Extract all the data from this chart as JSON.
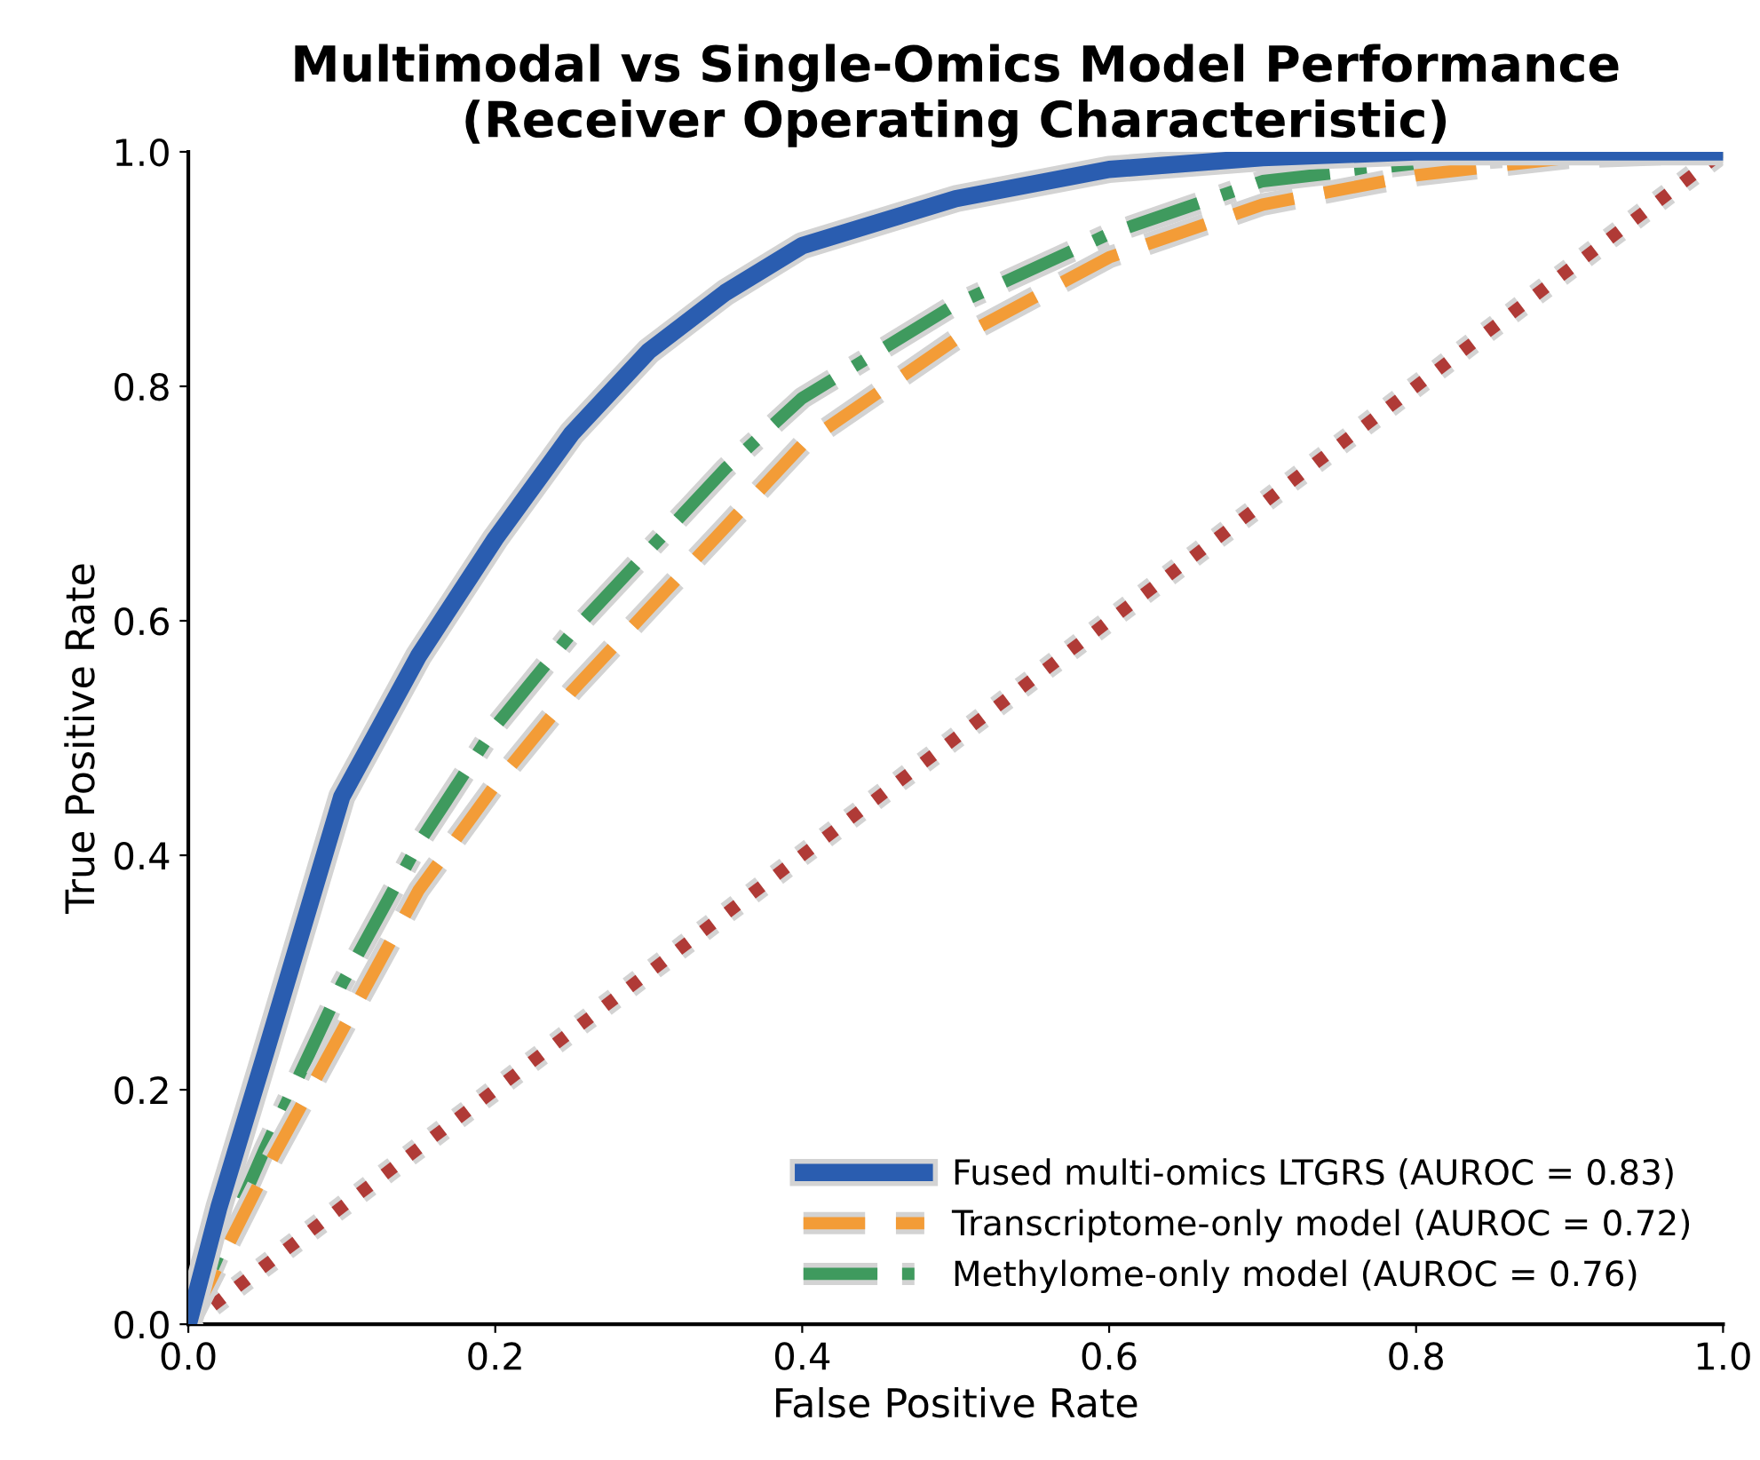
{
  "chart_data": {
    "type": "line",
    "title": "Multimodal vs Single-Omics Model Performance\n(Receiver Operating Characteristic)",
    "xlabel": "False Positive Rate",
    "ylabel": "True Positive Rate",
    "xlim": [
      0,
      1
    ],
    "ylim": [
      0,
      1
    ],
    "xticks": [
      {
        "value": 0,
        "label": "0.0"
      },
      0.2,
      0.4,
      0.6,
      0.8,
      {
        "value": 1,
        "label": "1.0"
      }
    ],
    "yticks": [
      {
        "value": 0,
        "label": "0.0"
      },
      0.2,
      0.4,
      0.6,
      0.8,
      {
        "value": 1,
        "label": "1.0"
      }
    ],
    "grid": false,
    "legend": "bottom right",
    "series": [
      {
        "name": "Fused multi-omics LTGRS (AUROC = 0.83)",
        "color": "#2a5db0",
        "line_style": "solid",
        "x": [
          0,
          0.02,
          0.05,
          0.1,
          0.15,
          0.2,
          0.25,
          0.3,
          0.35,
          0.4,
          0.5,
          0.6,
          0.7,
          0.8,
          0.9,
          1.0
        ],
        "values": [
          0,
          0.1,
          0.23,
          0.45,
          0.57,
          0.67,
          0.76,
          0.83,
          0.88,
          0.92,
          0.96,
          0.985,
          0.995,
          1.0,
          1.0,
          1.0
        ]
      },
      {
        "name": "Transcriptome-only model (AUROC = 0.72)",
        "color": "#f39c37",
        "line_style": "dashed",
        "x": [
          0,
          0.05,
          0.1,
          0.15,
          0.2,
          0.25,
          0.3,
          0.35,
          0.4,
          0.5,
          0.6,
          0.7,
          0.8,
          0.9,
          1.0
        ],
        "values": [
          0,
          0.13,
          0.25,
          0.37,
          0.46,
          0.54,
          0.61,
          0.68,
          0.75,
          0.84,
          0.91,
          0.955,
          0.98,
          0.995,
          1.0
        ]
      },
      {
        "name": "Methylome-only model (AUROC = 0.76)",
        "color": "#3f9a5e",
        "line_style": "dashdot",
        "x": [
          0,
          0.05,
          0.1,
          0.15,
          0.2,
          0.25,
          0.3,
          0.35,
          0.4,
          0.5,
          0.6,
          0.7,
          0.8,
          0.9,
          1.0
        ],
        "values": [
          0,
          0.15,
          0.29,
          0.41,
          0.51,
          0.59,
          0.66,
          0.73,
          0.79,
          0.87,
          0.93,
          0.975,
          0.99,
          1.0,
          1.0
        ]
      },
      {
        "color": "#b03a36",
        "line_style": "dotted",
        "x": [
          0,
          1
        ],
        "values": [
          0,
          1
        ]
      }
    ]
  }
}
